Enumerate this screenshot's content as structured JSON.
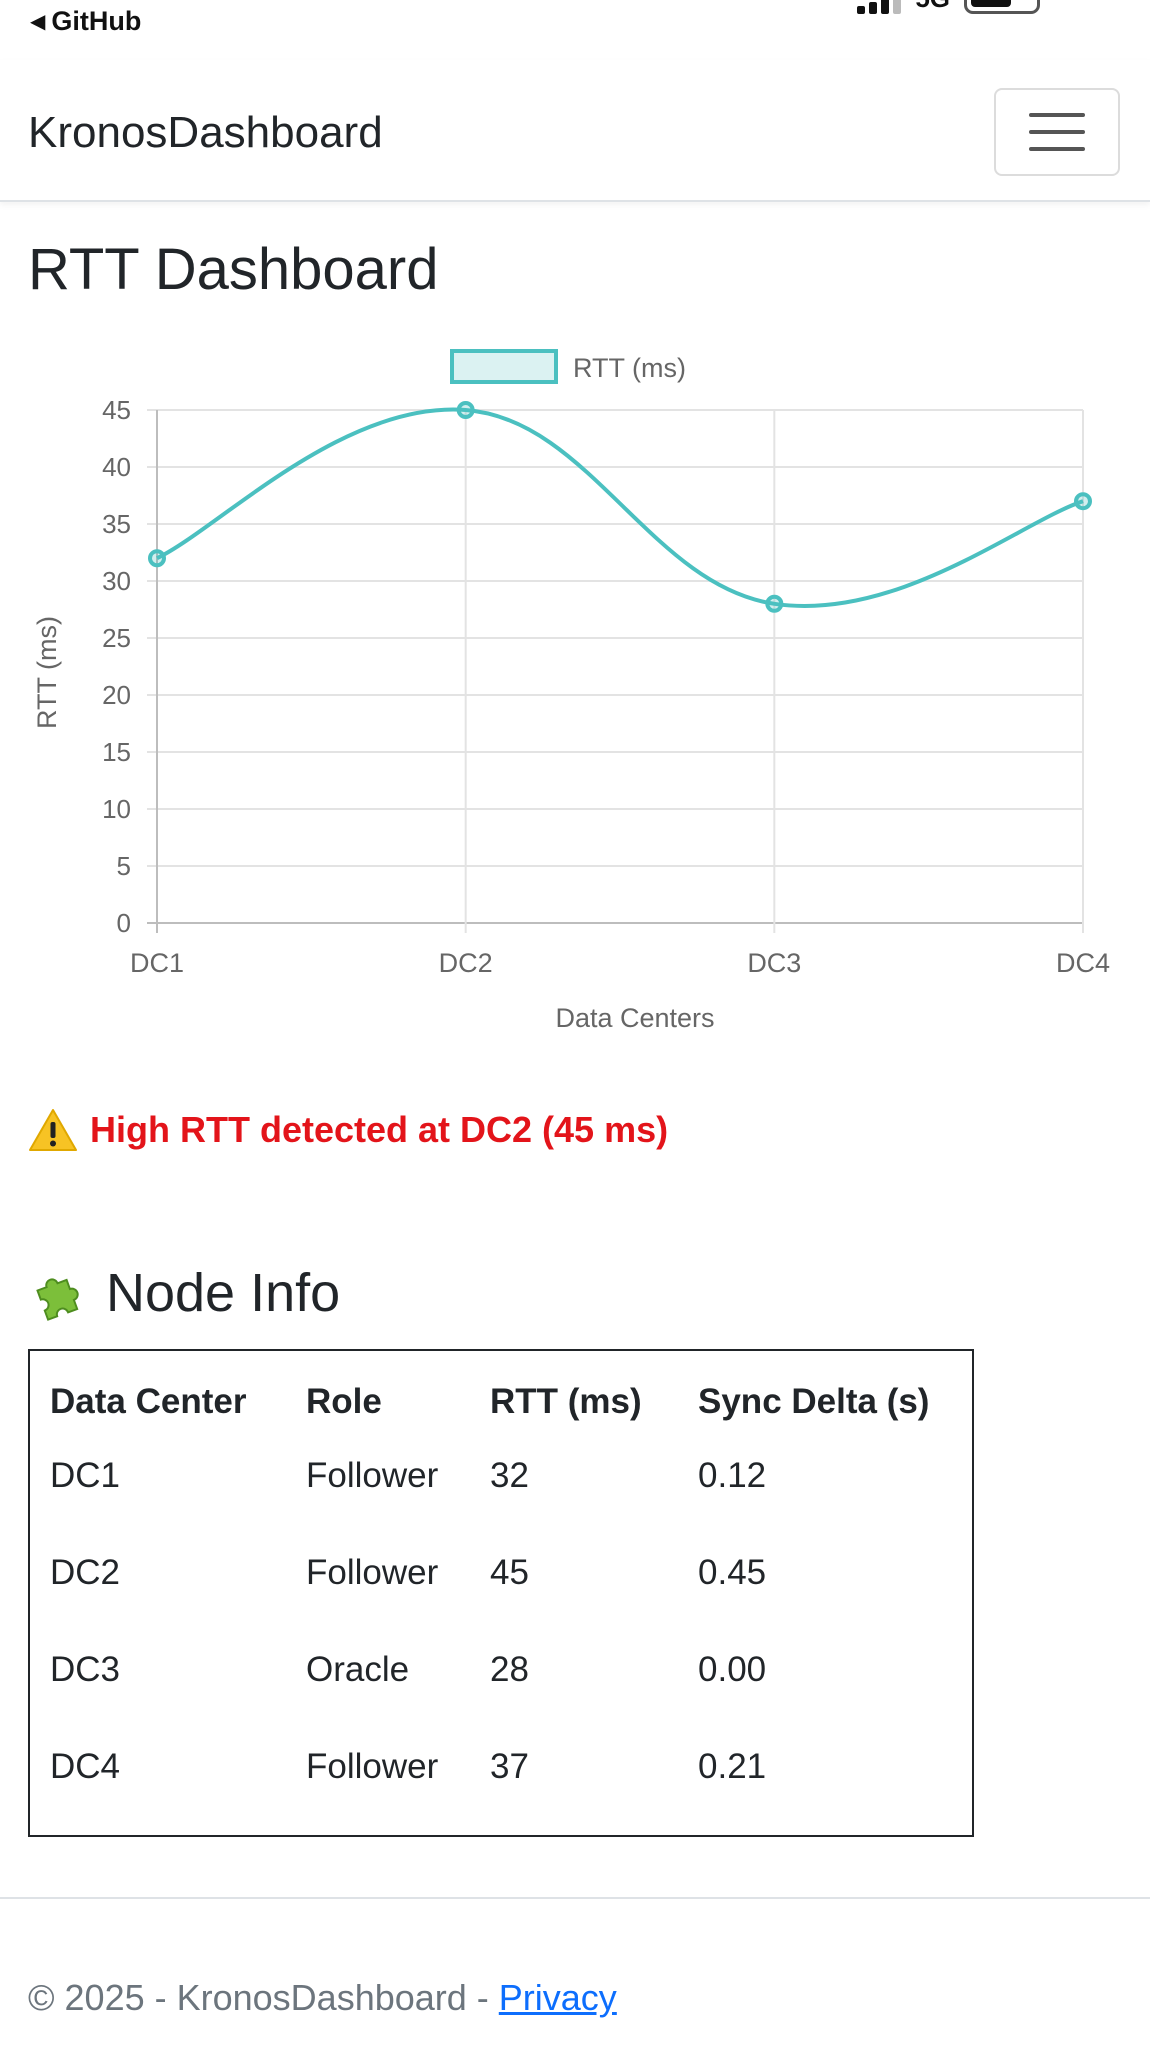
{
  "status_bar": {
    "back_label": "GitHub",
    "network": "5G"
  },
  "navbar": {
    "brand": "KronosDashboard",
    "toggle_icon": "hamburger-menu-icon"
  },
  "page_title": "RTT Dashboard",
  "chart_data": {
    "type": "line",
    "categories": [
      "DC1",
      "DC2",
      "DC3",
      "DC4"
    ],
    "series": [
      {
        "name": "RTT (ms)",
        "values": [
          32,
          45,
          28,
          37
        ],
        "color": "#4bc0c0"
      }
    ],
    "xlabel": "Data Centers",
    "ylabel": "RTT (ms)",
    "ylim": [
      0,
      45
    ],
    "yticks": [
      "0",
      "5",
      "10",
      "15",
      "20",
      "25",
      "30",
      "35",
      "40",
      "45"
    ],
    "grid": true,
    "legend": "top-center",
    "smooth": true
  },
  "alert": {
    "icon": "warning-icon",
    "text": "High RTT detected at DC2 (45 ms)",
    "color": "#e3141a"
  },
  "node_info": {
    "icon": "puzzle-icon",
    "title": "Node Info",
    "columns": [
      "Data Center",
      "Role",
      "RTT (ms)",
      "Sync Delta (s)"
    ],
    "rows": [
      [
        "DC1",
        "Follower",
        "32",
        "0.12"
      ],
      [
        "DC2",
        "Follower",
        "45",
        "0.45"
      ],
      [
        "DC3",
        "Oracle",
        "28",
        "0.00"
      ],
      [
        "DC4",
        "Follower",
        "37",
        "0.21"
      ]
    ]
  },
  "footer": {
    "text": "© 2025 - KronosDashboard - ",
    "link": "Privacy"
  }
}
